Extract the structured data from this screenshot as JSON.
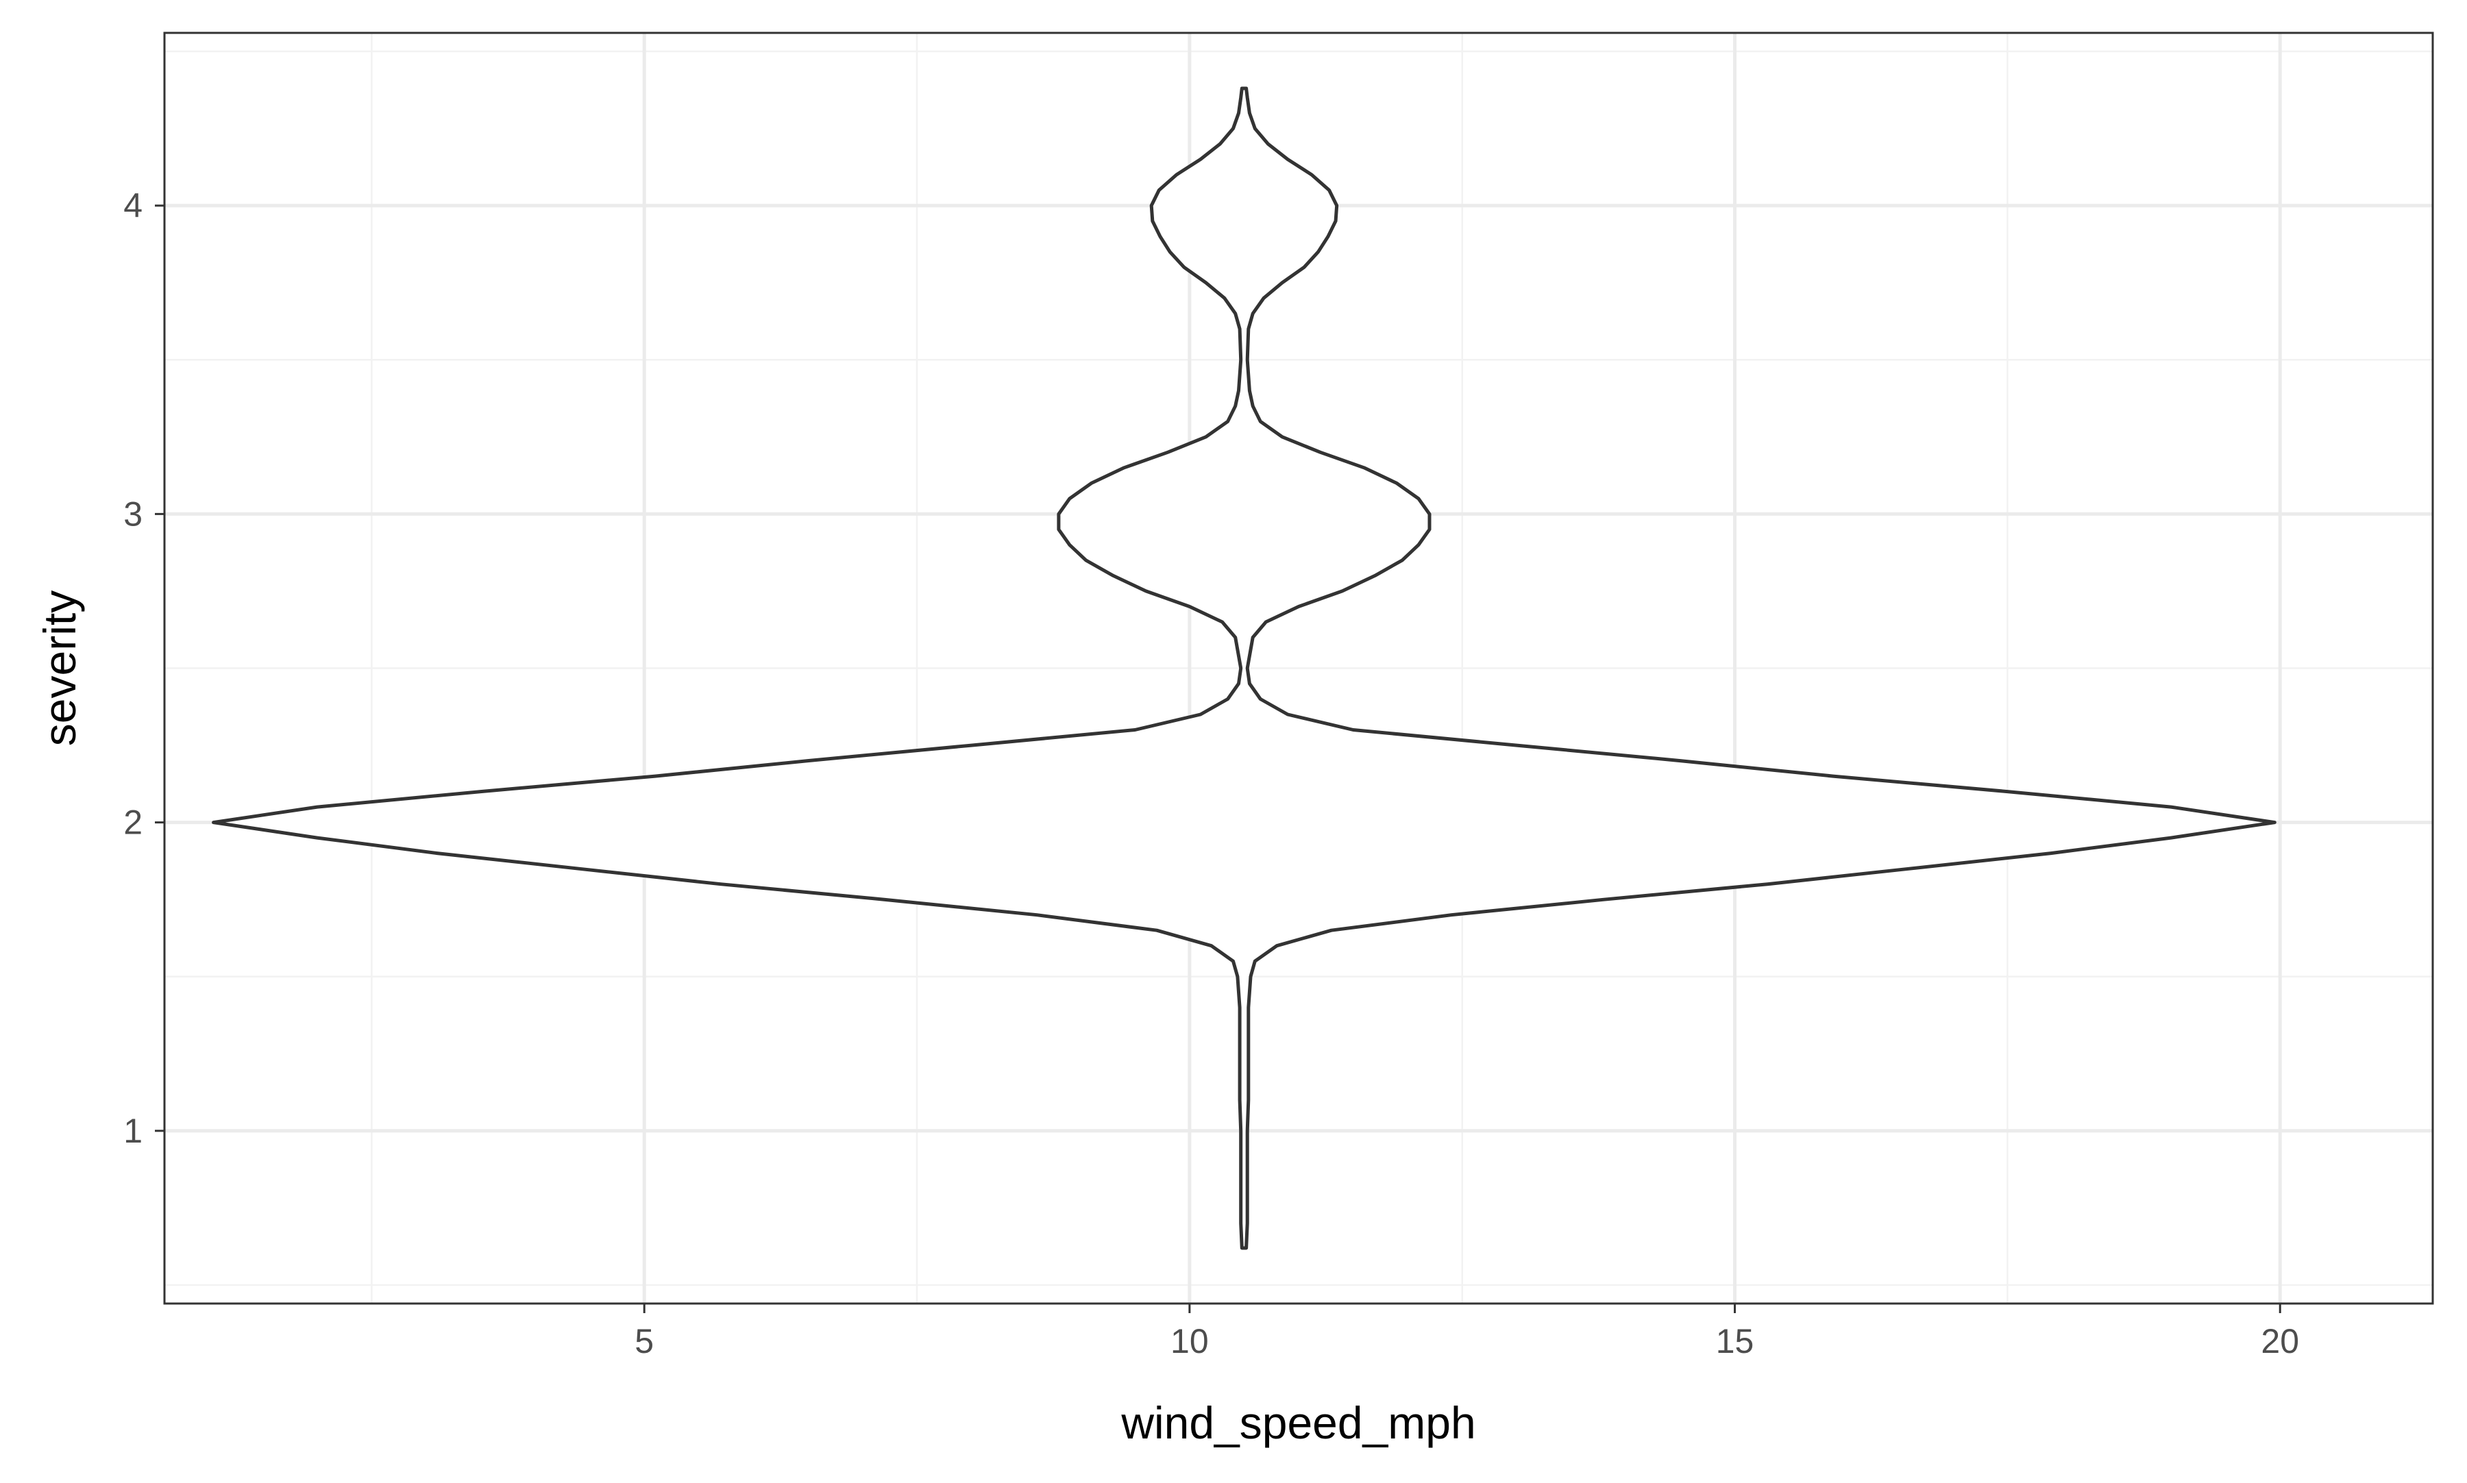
{
  "chart_data": {
    "type": "violin",
    "title": "",
    "xlabel": "wind_speed_mph",
    "ylabel": "severity",
    "x_ticks": [
      5,
      10,
      15,
      20
    ],
    "y_ticks": [
      1,
      2,
      3,
      4
    ],
    "xlim": [
      0.6,
      21.4
    ],
    "ylim": [
      0.44,
      4.56
    ],
    "grid": true,
    "legend": "none",
    "colors": {
      "outline": "#333333",
      "fill": "#ffffff",
      "grid_major": "#ebebeb",
      "grid_minor": "#f2f2f2",
      "panel_border": "#333333"
    },
    "center_x": 10.5,
    "y_min": 0.62,
    "y_max": 4.38,
    "density": {
      "y": [
        0.62,
        0.7,
        0.8,
        0.9,
        1.0,
        1.1,
        1.2,
        1.3,
        1.4,
        1.5,
        1.55,
        1.6,
        1.65,
        1.7,
        1.75,
        1.8,
        1.85,
        1.9,
        1.95,
        2.0,
        2.05,
        2.1,
        2.15,
        2.2,
        2.25,
        2.3,
        2.35,
        2.4,
        2.45,
        2.5,
        2.6,
        2.65,
        2.7,
        2.75,
        2.8,
        2.85,
        2.9,
        2.95,
        3.0,
        3.05,
        3.1,
        3.15,
        3.2,
        3.25,
        3.3,
        3.35,
        3.4,
        3.5,
        3.6,
        3.65,
        3.7,
        3.75,
        3.8,
        3.85,
        3.9,
        3.95,
        4.0,
        4.05,
        4.1,
        4.15,
        4.2,
        4.25,
        4.3,
        4.35,
        4.38
      ],
      "half_width": [
        0.02,
        0.03,
        0.03,
        0.03,
        0.03,
        0.04,
        0.04,
        0.04,
        0.04,
        0.06,
        0.1,
        0.3,
        0.8,
        1.9,
        3.3,
        4.8,
        6.1,
        7.4,
        8.5,
        9.45,
        8.5,
        7.0,
        5.4,
        4.0,
        2.5,
        1.0,
        0.4,
        0.15,
        0.05,
        0.03,
        0.08,
        0.2,
        0.5,
        0.9,
        1.2,
        1.45,
        1.6,
        1.7,
        1.7,
        1.6,
        1.4,
        1.1,
        0.7,
        0.35,
        0.15,
        0.08,
        0.05,
        0.03,
        0.04,
        0.08,
        0.18,
        0.35,
        0.55,
        0.68,
        0.77,
        0.84,
        0.85,
        0.78,
        0.62,
        0.4,
        0.22,
        0.1,
        0.05,
        0.03,
        0.02
      ]
    }
  }
}
